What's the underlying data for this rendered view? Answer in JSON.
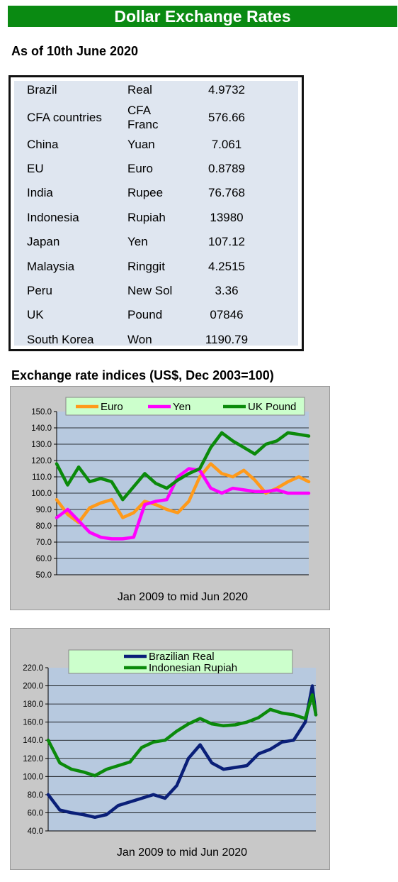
{
  "header": {
    "title": "Dollar Exchange Rates",
    "as_of": "As of 10th June 2020",
    "accent_color": "#0a8a12"
  },
  "rates": [
    {
      "country": "Brazil",
      "currency": "Real",
      "rate": "4.9732"
    },
    {
      "country": "CFA countries",
      "currency": "CFA Franc",
      "rate": "576.66"
    },
    {
      "country": "China",
      "currency": "Yuan",
      "rate": "7.061"
    },
    {
      "country": "EU",
      "currency": "Euro",
      "rate": "0.8789"
    },
    {
      "country": "India",
      "currency": "Rupee",
      "rate": "76.768"
    },
    {
      "country": "Indonesia",
      "currency": "Rupiah",
      "rate": "13980"
    },
    {
      "country": "Japan",
      "currency": "Yen",
      "rate": "107.12"
    },
    {
      "country": "Malaysia",
      "currency": "Ringgit",
      "rate": "4.2515"
    },
    {
      "country": "Peru",
      "currency": "New Sol",
      "rate": "3.36"
    },
    {
      "country": "UK",
      "currency": "Pound",
      "rate": "07846"
    },
    {
      "country": "South Korea",
      "currency": "Won",
      "rate": "1190.79"
    }
  ],
  "indices_title": "Exchange rate indices (US$, Dec 2003=100)",
  "chart_data": [
    {
      "type": "line",
      "title": "",
      "caption": "Jan 2009  to mid Jun 2020",
      "ylim": [
        50,
        150
      ],
      "yticks": [
        "150.0",
        "140.0",
        "130.0",
        "120.0",
        "110.0",
        "100.0",
        "90.0",
        "80.0",
        "70.0",
        "60.0",
        "50.0"
      ],
      "grid": true,
      "legend": "top",
      "x": [
        2009.0,
        2009.5,
        2010.0,
        2010.5,
        2011.0,
        2011.5,
        2012.0,
        2012.5,
        2013.0,
        2013.5,
        2014.0,
        2014.5,
        2015.0,
        2015.5,
        2016.0,
        2016.5,
        2017.0,
        2017.5,
        2018.0,
        2018.5,
        2019.0,
        2019.5,
        2020.0,
        2020.45
      ],
      "series": [
        {
          "name": "Euro",
          "color": "#ff9a1a",
          "values": [
            96,
            87,
            82,
            91,
            94,
            96,
            85,
            88,
            95,
            93,
            90,
            88,
            95,
            110,
            118,
            112,
            110,
            114,
            108,
            100,
            103,
            107,
            110,
            107
          ]
        },
        {
          "name": "Yen",
          "color": "#ff00ff",
          "values": [
            85,
            90,
            83,
            76,
            73,
            72,
            72,
            73,
            93,
            95,
            96,
            110,
            115,
            114,
            103,
            100,
            103,
            102,
            101,
            101,
            102,
            100,
            100,
            100
          ]
        },
        {
          "name": "UK Pound",
          "color": "#0b8a0b",
          "values": [
            118,
            105,
            116,
            107,
            109,
            107,
            96,
            104,
            112,
            106,
            103,
            108,
            112,
            115,
            128,
            137,
            132,
            128,
            124,
            130,
            132,
            137,
            136,
            135
          ]
        }
      ]
    },
    {
      "type": "line",
      "title": "",
      "caption": "Jan 2009  to mid Jun 2020",
      "ylim": [
        40,
        220
      ],
      "yticks": [
        "220.0",
        "200.0",
        "180.0",
        "160.0",
        "140.0",
        "120.0",
        "100.0",
        "80.0",
        "60.0",
        "40.0"
      ],
      "grid": true,
      "legend": "top",
      "x": [
        2009.0,
        2009.5,
        2010.0,
        2010.5,
        2011.0,
        2011.5,
        2012.0,
        2012.5,
        2013.0,
        2013.5,
        2014.0,
        2014.5,
        2015.0,
        2015.5,
        2016.0,
        2016.5,
        2017.0,
        2017.5,
        2018.0,
        2018.5,
        2019.0,
        2019.5,
        2020.0,
        2020.3,
        2020.45
      ],
      "series": [
        {
          "name": "Brazilian Real",
          "color": "#0a1f78",
          "values": [
            80,
            63,
            60,
            58,
            55,
            58,
            68,
            72,
            76,
            80,
            76,
            90,
            120,
            135,
            115,
            108,
            110,
            112,
            125,
            130,
            138,
            140,
            160,
            200,
            168
          ]
        },
        {
          "name": "Indonesian Rupiah",
          "color": "#0b8a0b",
          "values": [
            140,
            115,
            108,
            105,
            101,
            108,
            112,
            116,
            132,
            138,
            140,
            150,
            158,
            164,
            158,
            156,
            157,
            160,
            165,
            174,
            170,
            168,
            164,
            190,
            168
          ]
        }
      ]
    }
  ]
}
